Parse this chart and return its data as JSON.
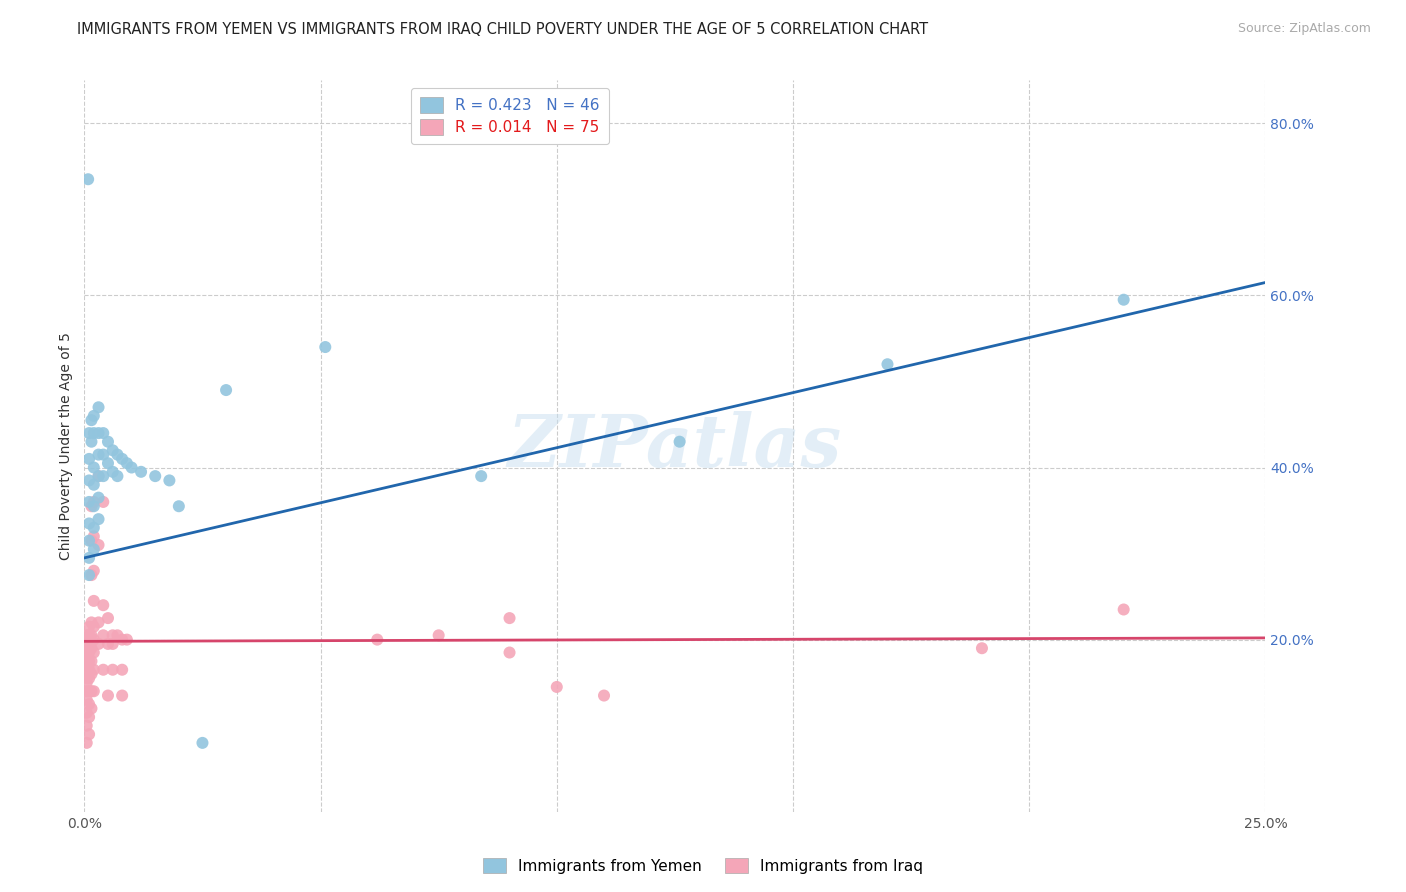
{
  "title": "IMMIGRANTS FROM YEMEN VS IMMIGRANTS FROM IRAQ CHILD POVERTY UNDER THE AGE OF 5 CORRELATION CHART",
  "source": "Source: ZipAtlas.com",
  "ylabel": "Child Poverty Under the Age of 5",
  "x_min": 0.0,
  "x_max": 0.25,
  "y_min": 0.0,
  "y_max": 0.85,
  "x_ticks": [
    0.0,
    0.05,
    0.1,
    0.15,
    0.2,
    0.25
  ],
  "x_tick_labels": [
    "0.0%",
    "",
    "",
    "",
    "",
    "25.0%"
  ],
  "y_ticks": [
    0.2,
    0.4,
    0.6,
    0.8
  ],
  "y_tick_labels": [
    "20.0%",
    "40.0%",
    "60.0%",
    "80.0%"
  ],
  "watermark": "ZIPatlas",
  "yemen_color": "#92c5de",
  "iraq_color": "#f4a6b8",
  "yemen_line_color": "#2166ac",
  "iraq_line_color": "#d6456b",
  "yemen_line_x0": 0.0,
  "yemen_line_y0": 0.295,
  "yemen_line_x1": 0.25,
  "yemen_line_y1": 0.615,
  "iraq_line_x0": 0.0,
  "iraq_line_y0": 0.198,
  "iraq_line_x1": 0.25,
  "iraq_line_y1": 0.202,
  "background_color": "#ffffff",
  "grid_color": "#cccccc",
  "title_fontsize": 10.5,
  "axis_label_fontsize": 10,
  "tick_fontsize": 10,
  "legend_fontsize": 11,
  "yemen_scatter": [
    [
      0.0008,
      0.735
    ],
    [
      0.001,
      0.44
    ],
    [
      0.001,
      0.41
    ],
    [
      0.001,
      0.385
    ],
    [
      0.001,
      0.36
    ],
    [
      0.001,
      0.335
    ],
    [
      0.001,
      0.315
    ],
    [
      0.001,
      0.295
    ],
    [
      0.001,
      0.275
    ],
    [
      0.0015,
      0.455
    ],
    [
      0.0015,
      0.43
    ],
    [
      0.002,
      0.46
    ],
    [
      0.002,
      0.44
    ],
    [
      0.002,
      0.4
    ],
    [
      0.002,
      0.38
    ],
    [
      0.002,
      0.355
    ],
    [
      0.002,
      0.33
    ],
    [
      0.002,
      0.305
    ],
    [
      0.003,
      0.47
    ],
    [
      0.003,
      0.44
    ],
    [
      0.003,
      0.415
    ],
    [
      0.003,
      0.39
    ],
    [
      0.003,
      0.365
    ],
    [
      0.003,
      0.34
    ],
    [
      0.004,
      0.44
    ],
    [
      0.004,
      0.415
    ],
    [
      0.004,
      0.39
    ],
    [
      0.005,
      0.43
    ],
    [
      0.005,
      0.405
    ],
    [
      0.006,
      0.42
    ],
    [
      0.006,
      0.395
    ],
    [
      0.007,
      0.415
    ],
    [
      0.007,
      0.39
    ],
    [
      0.008,
      0.41
    ],
    [
      0.009,
      0.405
    ],
    [
      0.01,
      0.4
    ],
    [
      0.012,
      0.395
    ],
    [
      0.015,
      0.39
    ],
    [
      0.018,
      0.385
    ],
    [
      0.02,
      0.355
    ],
    [
      0.025,
      0.08
    ],
    [
      0.03,
      0.49
    ],
    [
      0.051,
      0.54
    ],
    [
      0.084,
      0.39
    ],
    [
      0.126,
      0.43
    ],
    [
      0.17,
      0.52
    ],
    [
      0.22,
      0.595
    ]
  ],
  "iraq_scatter": [
    [
      0.0005,
      0.205
    ],
    [
      0.0005,
      0.2
    ],
    [
      0.0005,
      0.195
    ],
    [
      0.0005,
      0.19
    ],
    [
      0.0005,
      0.185
    ],
    [
      0.0005,
      0.18
    ],
    [
      0.0005,
      0.175
    ],
    [
      0.0005,
      0.17
    ],
    [
      0.0005,
      0.16
    ],
    [
      0.0005,
      0.155
    ],
    [
      0.0005,
      0.15
    ],
    [
      0.0005,
      0.14
    ],
    [
      0.0005,
      0.13
    ],
    [
      0.0005,
      0.115
    ],
    [
      0.0005,
      0.1
    ],
    [
      0.0005,
      0.08
    ],
    [
      0.001,
      0.215
    ],
    [
      0.001,
      0.205
    ],
    [
      0.001,
      0.195
    ],
    [
      0.001,
      0.185
    ],
    [
      0.001,
      0.175
    ],
    [
      0.001,
      0.165
    ],
    [
      0.001,
      0.155
    ],
    [
      0.001,
      0.14
    ],
    [
      0.001,
      0.125
    ],
    [
      0.001,
      0.11
    ],
    [
      0.001,
      0.09
    ],
    [
      0.0015,
      0.355
    ],
    [
      0.0015,
      0.315
    ],
    [
      0.0015,
      0.275
    ],
    [
      0.0015,
      0.22
    ],
    [
      0.0015,
      0.205
    ],
    [
      0.0015,
      0.19
    ],
    [
      0.0015,
      0.175
    ],
    [
      0.0015,
      0.16
    ],
    [
      0.0015,
      0.14
    ],
    [
      0.0015,
      0.12
    ],
    [
      0.002,
      0.36
    ],
    [
      0.002,
      0.32
    ],
    [
      0.002,
      0.28
    ],
    [
      0.002,
      0.245
    ],
    [
      0.002,
      0.215
    ],
    [
      0.002,
      0.2
    ],
    [
      0.002,
      0.185
    ],
    [
      0.002,
      0.165
    ],
    [
      0.002,
      0.14
    ],
    [
      0.003,
      0.39
    ],
    [
      0.003,
      0.31
    ],
    [
      0.003,
      0.22
    ],
    [
      0.003,
      0.195
    ],
    [
      0.004,
      0.36
    ],
    [
      0.004,
      0.24
    ],
    [
      0.004,
      0.205
    ],
    [
      0.004,
      0.165
    ],
    [
      0.005,
      0.225
    ],
    [
      0.005,
      0.195
    ],
    [
      0.005,
      0.135
    ],
    [
      0.006,
      0.205
    ],
    [
      0.006,
      0.195
    ],
    [
      0.006,
      0.165
    ],
    [
      0.007,
      0.205
    ],
    [
      0.008,
      0.2
    ],
    [
      0.008,
      0.165
    ],
    [
      0.008,
      0.135
    ],
    [
      0.009,
      0.2
    ],
    [
      0.062,
      0.2
    ],
    [
      0.075,
      0.205
    ],
    [
      0.09,
      0.225
    ],
    [
      0.09,
      0.185
    ],
    [
      0.1,
      0.145
    ],
    [
      0.11,
      0.135
    ],
    [
      0.19,
      0.19
    ],
    [
      0.22,
      0.235
    ]
  ]
}
